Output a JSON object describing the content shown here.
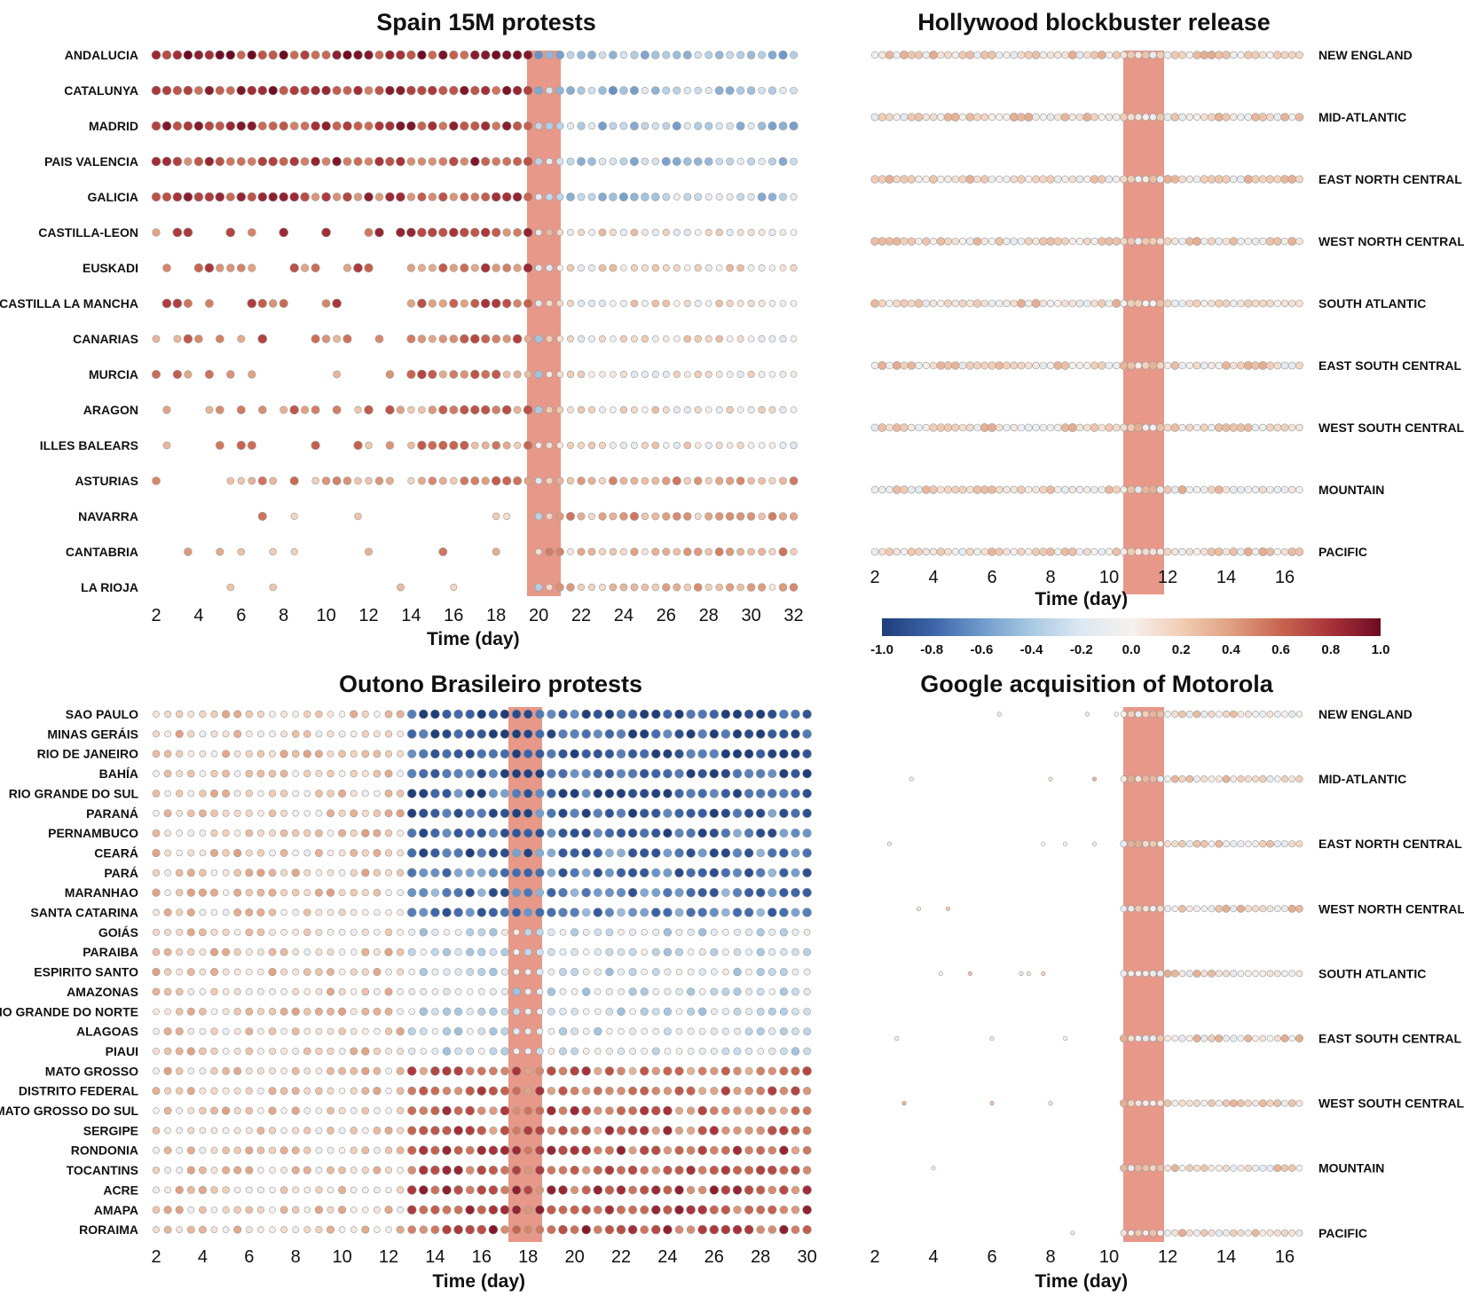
{
  "chart_data": [
    {
      "type": "dot-matrix",
      "title": "Spain 15M protests",
      "xlabel": "Time (day)",
      "x_range": [
        1,
        32
      ],
      "x_ticks": [
        "2",
        "4",
        "6",
        "8",
        "10",
        "12",
        "14",
        "16",
        "18",
        "20",
        "22",
        "24",
        "26",
        "28",
        "30",
        "32"
      ],
      "highlight_day": 20,
      "label_side": "left",
      "rows": [
        "ANDALUCIA",
        "CATALUNYA",
        "MADRID",
        "PAIS VALENCIA",
        "GALICIA",
        "CASTILLA-LEON",
        "EUSKADI",
        "CASTILLA LA MANCHA",
        "CANARIAS",
        "MURCIA",
        "ARAGON",
        "ILLES BALEARS",
        "ASTURIAS",
        "NAVARRA",
        "CANTABRIA",
        "LA RIOJA"
      ],
      "colored_by": "correlation",
      "pattern": "positive (red) correlation before day 20, negative (blue) after day 20 for large regions"
    },
    {
      "type": "dot-matrix",
      "title": "Hollywood blockbuster release",
      "xlabel": "Time (day)",
      "x_range": [
        1,
        16.5
      ],
      "x_ticks": [
        "2",
        "4",
        "6",
        "8",
        "10",
        "12",
        "14",
        "16"
      ],
      "highlight_day": 10.5,
      "label_side": "right",
      "rows": [
        "NEW ENGLAND",
        "MID-ATLANTIC",
        "EAST NORTH CENTRAL",
        "WEST NORTH CENTRAL",
        "SOUTH ATLANTIC",
        "EAST SOUTH CENTRAL",
        "WEST SOUTH CENTRAL",
        "MOUNTAIN",
        "PACIFIC"
      ],
      "colored_by": "correlation",
      "pattern": "mixed weak correlations, strongest around day 10-11"
    },
    {
      "type": "dot-matrix",
      "title": "Outono Brasileiro protests",
      "xlabel": "Time (day)",
      "x_range": [
        1,
        30
      ],
      "x_ticks": [
        "2",
        "4",
        "6",
        "8",
        "10",
        "12",
        "14",
        "16",
        "18",
        "20",
        "22",
        "24",
        "26",
        "28",
        "30"
      ],
      "highlight_day": 17.5,
      "label_side": "left",
      "rows": [
        "SAO PAULO",
        "MINAS GERÁIS",
        "RIO DE JANEIRO",
        "BAHÍA",
        "RIO GRANDE DO SUL",
        "PARANÁ",
        "PERNAMBUCO",
        "CEARÁ",
        "PARÁ",
        "MARANHAO",
        "SANTA CATARINA",
        "GOIÁS",
        "PARAIBA",
        "ESPIRITO SANTO",
        "AMAZONAS",
        "RIO GRANDE DO NORTE",
        "ALAGOAS",
        "PIAUI",
        "MATO GROSSO",
        "DISTRITO FEDERAL",
        "MATO GROSSO DO SUL",
        "SERGIPE",
        "RONDONIA",
        "TOCANTINS",
        "ACRE",
        "AMAPA",
        "RORAIMA"
      ],
      "colored_by": "correlation",
      "pattern": "large states strongly negative (blue) after day 13; small states positive (red) after day 14"
    },
    {
      "type": "dot-matrix",
      "title": "Google acquisition of Motorola",
      "xlabel": "Time (day)",
      "x_range": [
        1,
        16.5
      ],
      "x_ticks": [
        "2",
        "4",
        "6",
        "8",
        "10",
        "12",
        "14",
        "16"
      ],
      "highlight_day": 10.5,
      "label_side": "right",
      "rows": [
        "NEW ENGLAND",
        "MID-ATLANTIC",
        "EAST NORTH CENTRAL",
        "WEST NORTH CENTRAL",
        "SOUTH ATLANTIC",
        "EAST SOUTH CENTRAL",
        "WEST SOUTH CENTRAL",
        "MOUNTAIN",
        "PACIFIC"
      ],
      "colored_by": "correlation",
      "pattern": "sparse activity before day 10, mixed small correlations after"
    }
  ],
  "colorbar": {
    "range": [
      -1.0,
      1.0
    ],
    "ticks": [
      "-1.0",
      "-0.8",
      "-0.6",
      "-0.4",
      "-0.2",
      "0.0",
      "0.2",
      "0.4",
      "0.6",
      "0.8",
      "1.0"
    ],
    "colors": [
      "#1f3e7a",
      "#3b63a8",
      "#6f9acb",
      "#a9c9e2",
      "#dde8f1",
      "#f6f1ee",
      "#f1cdb5",
      "#e0a081",
      "#c8654f",
      "#a8323a",
      "#6e0b22"
    ]
  }
}
